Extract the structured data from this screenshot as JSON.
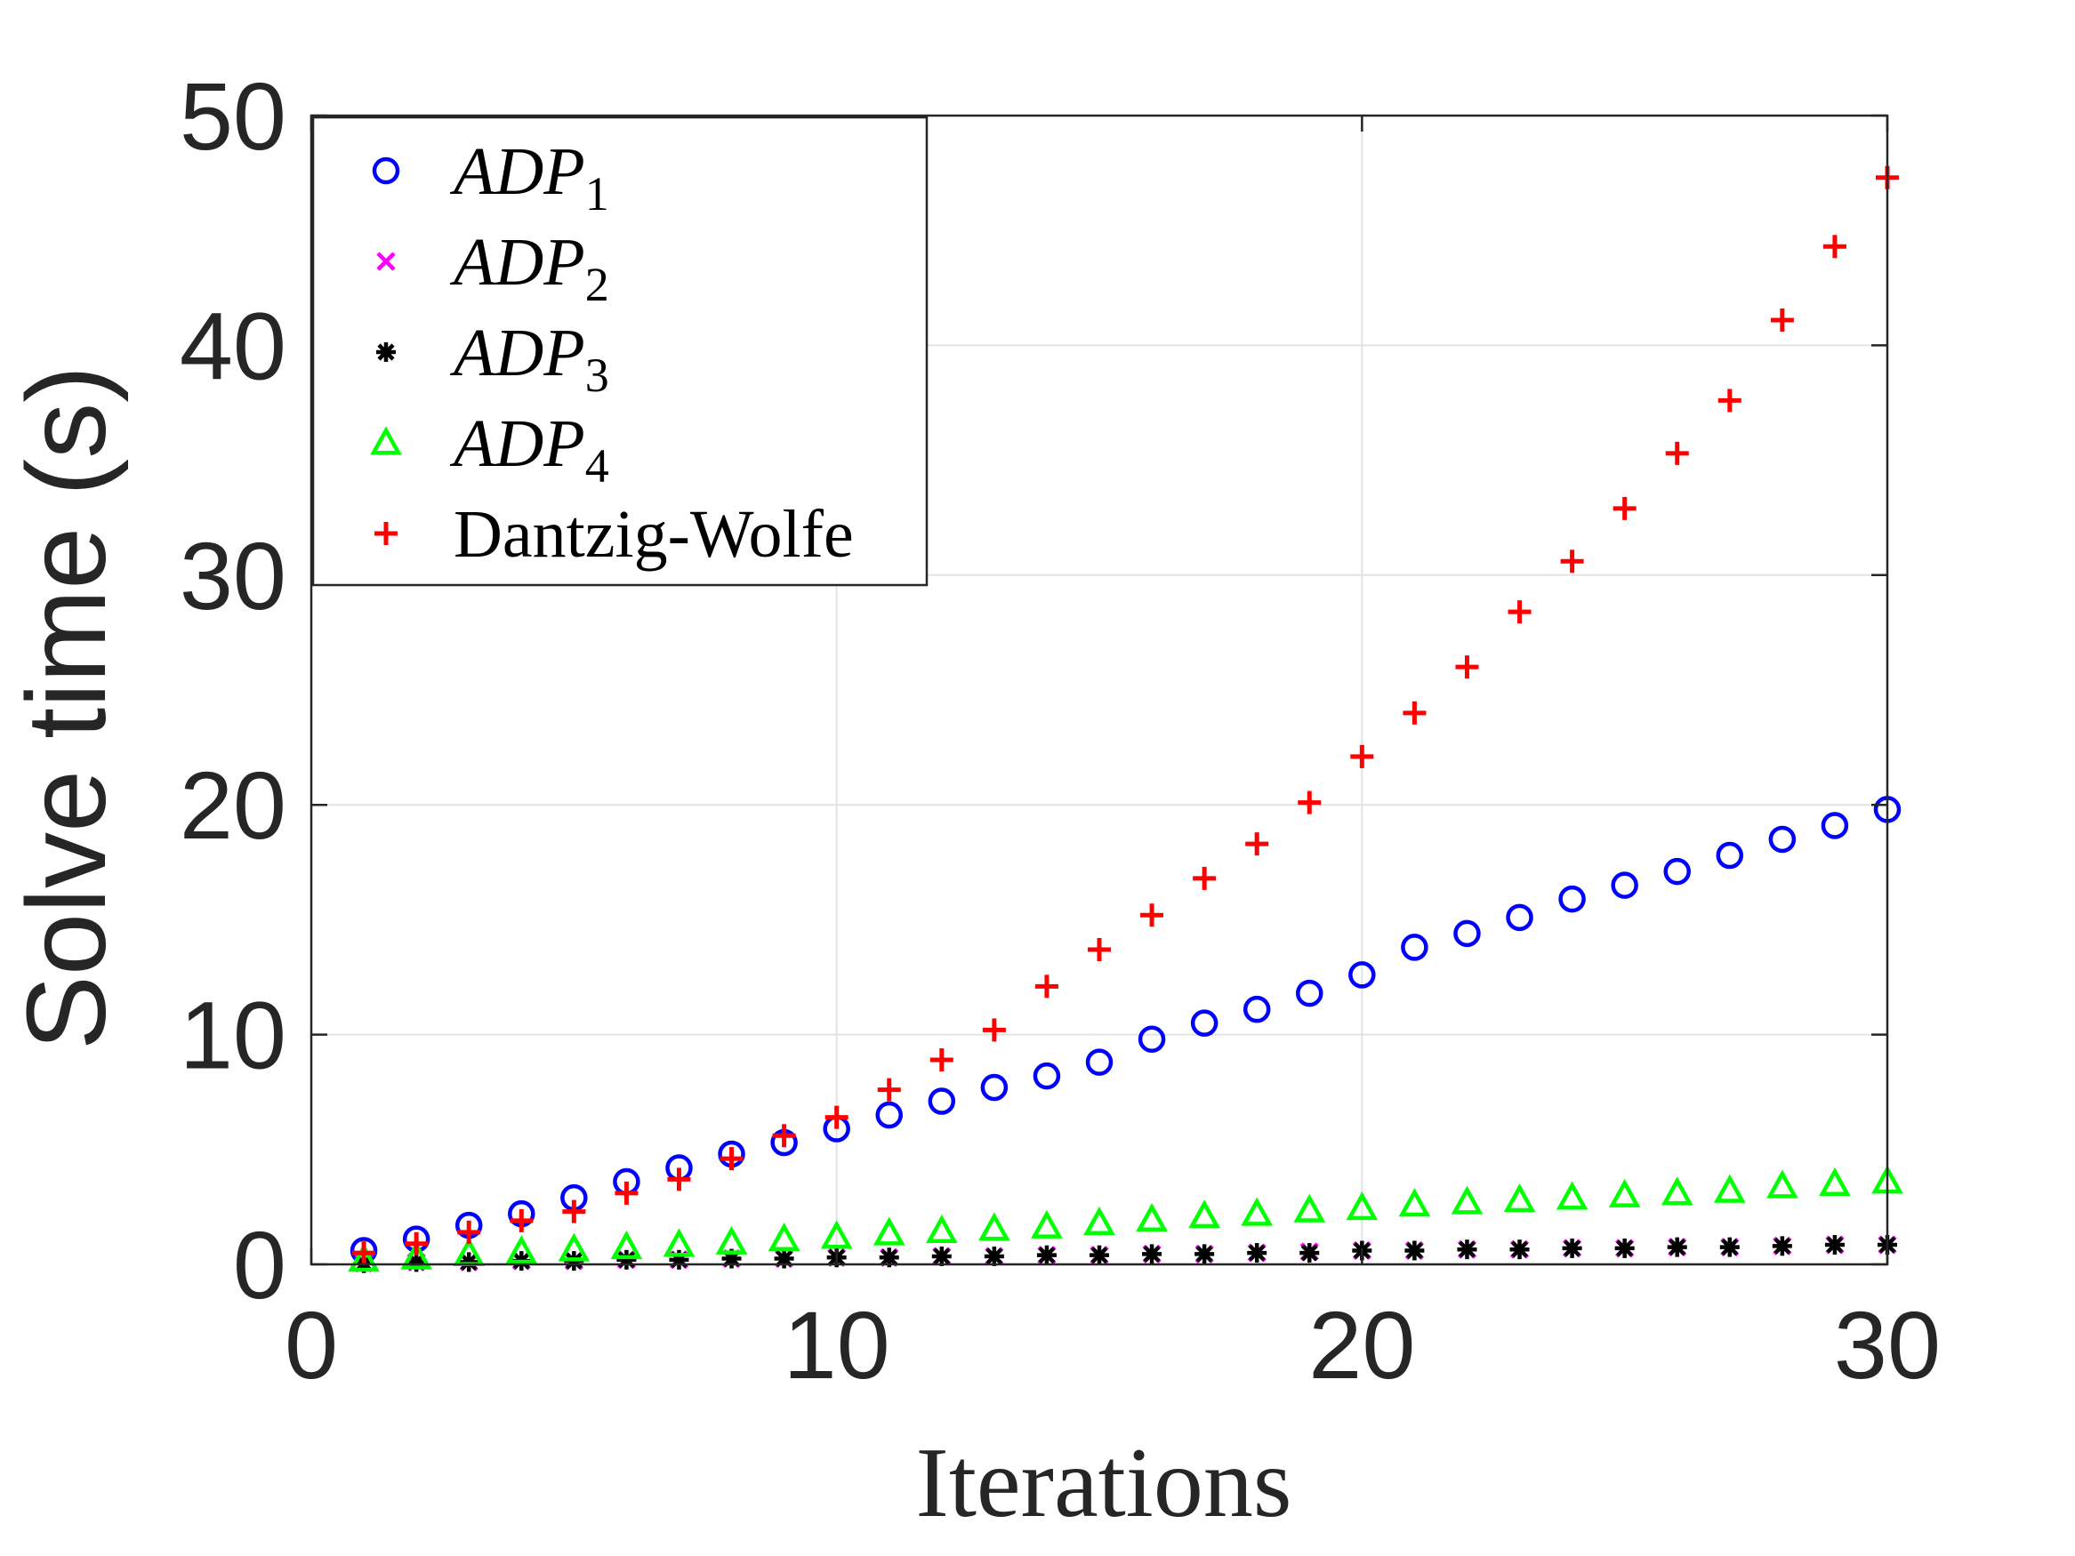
{
  "chart_data": {
    "type": "scatter",
    "title": "",
    "xlabel": "Iterations",
    "ylabel": "Solve time (s)",
    "xlim": [
      0,
      30
    ],
    "ylim": [
      0,
      50
    ],
    "x_ticks": [
      0,
      10,
      20,
      30
    ],
    "y_ticks": [
      0,
      10,
      20,
      30,
      40,
      50
    ],
    "grid": true,
    "legend_position": "top-left",
    "x": [
      1,
      2,
      3,
      4,
      5,
      6,
      7,
      8,
      9,
      10,
      11,
      12,
      13,
      14,
      15,
      16,
      17,
      18,
      19,
      20,
      21,
      22,
      23,
      24,
      25,
      26,
      27,
      28,
      29,
      30
    ],
    "series": [
      {
        "name": "ADP",
        "subscript": "1",
        "marker": "circle",
        "color": "#0000ff",
        "values": [
          0.6,
          1.1,
          1.7,
          2.2,
          2.9,
          3.6,
          4.2,
          4.8,
          5.3,
          5.9,
          6.5,
          7.1,
          7.7,
          8.2,
          8.8,
          9.8,
          10.5,
          11.1,
          11.8,
          12.6,
          13.8,
          14.4,
          15.1,
          15.9,
          16.5,
          17.1,
          17.8,
          18.5,
          19.1,
          19.8
        ]
      },
      {
        "name": "ADP",
        "subscript": "2",
        "marker": "x",
        "color": "#ff00ff",
        "values": [
          0.05,
          0.1,
          0.1,
          0.15,
          0.15,
          0.2,
          0.2,
          0.25,
          0.25,
          0.3,
          0.3,
          0.35,
          0.35,
          0.4,
          0.4,
          0.45,
          0.45,
          0.5,
          0.55,
          0.6,
          0.6,
          0.65,
          0.65,
          0.7,
          0.7,
          0.75,
          0.75,
          0.8,
          0.85,
          0.85
        ]
      },
      {
        "name": "ADP",
        "subscript": "3",
        "marker": "asterisk",
        "color": "#000000",
        "values": [
          0.05,
          0.1,
          0.1,
          0.15,
          0.15,
          0.2,
          0.2,
          0.25,
          0.25,
          0.3,
          0.3,
          0.35,
          0.35,
          0.4,
          0.4,
          0.45,
          0.45,
          0.5,
          0.5,
          0.6,
          0.6,
          0.65,
          0.65,
          0.7,
          0.7,
          0.75,
          0.75,
          0.8,
          0.85,
          0.85
        ]
      },
      {
        "name": "ADP",
        "subscript": "4",
        "marker": "triangle",
        "color": "#00ff00",
        "values": [
          0.2,
          0.3,
          0.45,
          0.55,
          0.65,
          0.75,
          0.85,
          0.95,
          1.1,
          1.2,
          1.35,
          1.45,
          1.55,
          1.65,
          1.8,
          1.95,
          2.1,
          2.2,
          2.35,
          2.45,
          2.6,
          2.7,
          2.8,
          2.9,
          3.0,
          3.1,
          3.2,
          3.4,
          3.5,
          3.6
        ]
      },
      {
        "name": "Dantzig-Wolfe",
        "subscript": "",
        "marker": "plus",
        "color": "#ff0000",
        "values": [
          0.5,
          0.9,
          1.4,
          1.9,
          2.3,
          3.1,
          3.7,
          4.6,
          5.6,
          6.4,
          7.6,
          8.9,
          10.2,
          12.1,
          13.7,
          15.2,
          16.8,
          18.3,
          20.1,
          22.1,
          24.0,
          26.0,
          28.4,
          30.6,
          32.9,
          35.3,
          37.6,
          41.1,
          44.3,
          47.3
        ]
      }
    ]
  }
}
